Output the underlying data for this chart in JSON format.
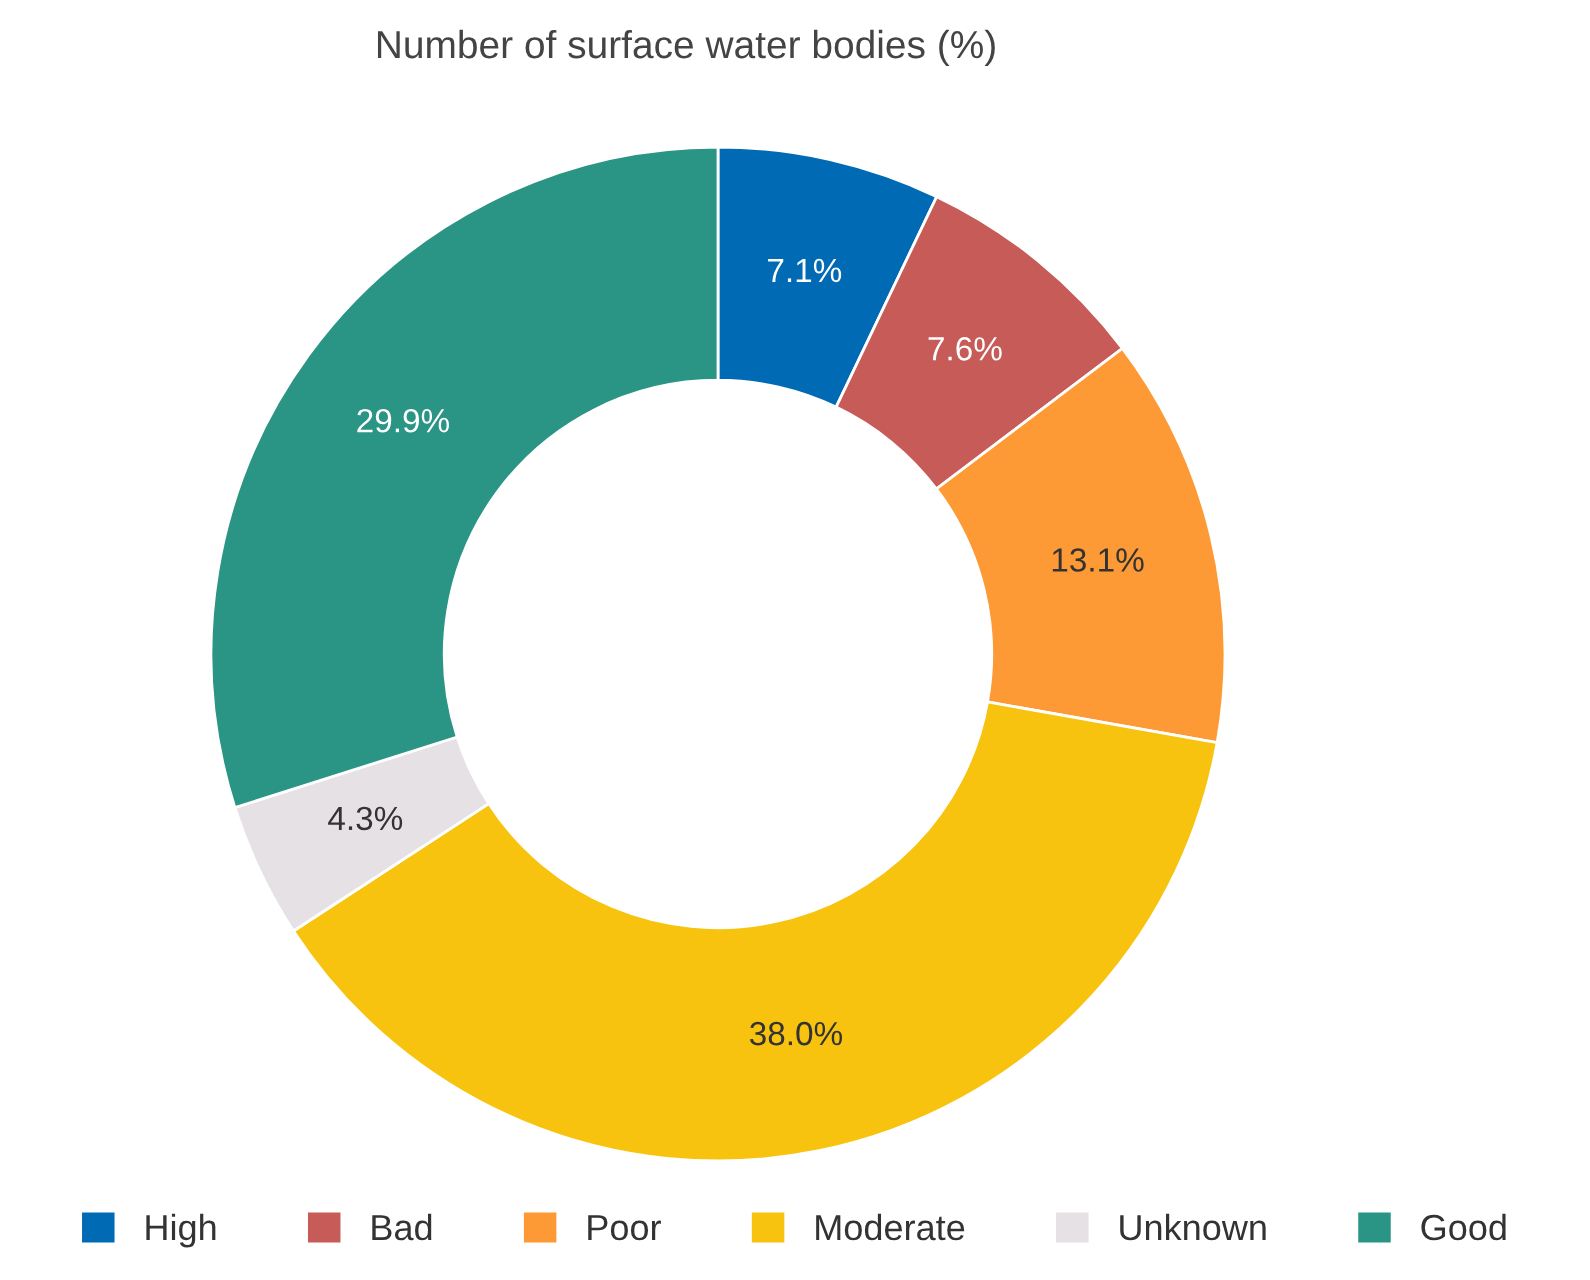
{
  "chart_data": {
    "type": "donut",
    "title": "Number of surface water bodies (%)",
    "categories": [
      "High",
      "Bad",
      "Poor",
      "Moderate",
      "Unknown",
      "Good"
    ],
    "values": [
      7.1,
      7.6,
      13.1,
      38.0,
      4.3,
      29.9
    ],
    "colors": [
      "#006ab5",
      "#c65b58",
      "#fd9a35",
      "#f7c30e",
      "#e6e1e5",
      "#2a9485"
    ],
    "value_labels": [
      "7.1%",
      "7.6%",
      "13.1%",
      "38.0%",
      "4.3%",
      "29.9%"
    ],
    "legend": "bottom"
  }
}
